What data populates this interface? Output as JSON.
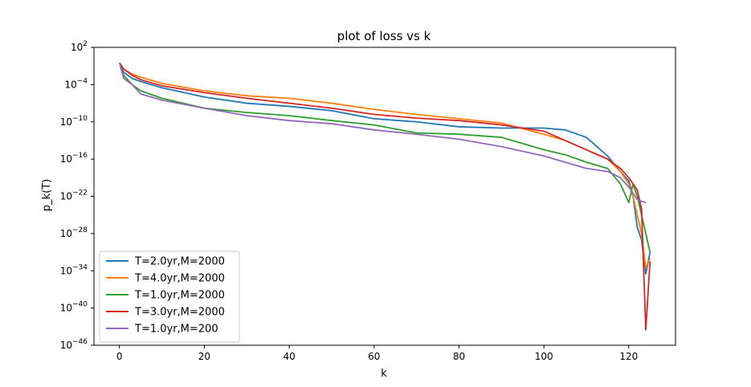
{
  "chart_data": {
    "type": "line",
    "title": "plot of loss vs k",
    "xlabel": "k",
    "ylabel": "p_k(T)",
    "xlim": [
      -6,
      131
    ],
    "ylim_exp": [
      -46,
      2
    ],
    "yscale": "log",
    "x_ticks": [
      0,
      20,
      40,
      60,
      80,
      100,
      120
    ],
    "y_tick_exps": [
      2,
      -4,
      -10,
      -16,
      -22,
      -28,
      -34,
      -40,
      -46
    ],
    "y_tick_labels": [
      "10^2",
      "10^-4",
      "10^-10",
      "10^-16",
      "10^-22",
      "10^-28",
      "10^-34",
      "10^-40",
      "10^-46"
    ],
    "legend_position": "lower-left",
    "series": [
      {
        "name": "T=2.0yr,M=2000",
        "color": "#1f77b4",
        "x": [
          0,
          1,
          3,
          5,
          10,
          20,
          30,
          40,
          50,
          60,
          70,
          80,
          90,
          100,
          105,
          110,
          115,
          118,
          120,
          121,
          122,
          123,
          124,
          125
        ],
        "log10_y": [
          -0.5,
          -2,
          -3,
          -3.5,
          -4.5,
          -6,
          -7,
          -7.5,
          -8.2,
          -9.5,
          -10,
          -10.8,
          -11,
          -11,
          -11.3,
          -12.5,
          -15.5,
          -18,
          -19.5,
          -22,
          -27,
          -29,
          -34.5,
          -31
        ]
      },
      {
        "name": "T=4.0yr,M=2000",
        "color": "#ff7f0e",
        "x": [
          0,
          1,
          3,
          5,
          10,
          20,
          30,
          40,
          50,
          60,
          70,
          80,
          90,
          100,
          105,
          110,
          115,
          118,
          120,
          121,
          122,
          123,
          124,
          125
        ],
        "log10_y": [
          -0.5,
          -1.5,
          -2.3,
          -2.8,
          -3.8,
          -5,
          -5.8,
          -6.2,
          -7,
          -8,
          -8.8,
          -9.5,
          -10.2,
          -12,
          -13,
          -14.5,
          -16,
          -18,
          -20,
          -22,
          -25,
          -28,
          -33.5,
          -32
        ]
      },
      {
        "name": "T=1.0yr,M=2000",
        "color": "#2ca02c",
        "x": [
          0,
          1,
          3,
          5,
          10,
          20,
          30,
          40,
          50,
          60,
          70,
          80,
          90,
          100,
          105,
          110,
          115,
          118,
          120,
          121,
          122,
          123,
          124,
          125
        ],
        "log10_y": [
          -0.5,
          -2.5,
          -4,
          -5,
          -6.2,
          -7.8,
          -8.5,
          -9,
          -9.8,
          -10.5,
          -11.8,
          -12,
          -12.5,
          -14.5,
          -15.3,
          -16.5,
          -17.5,
          -20,
          -23,
          -20,
          -22,
          -25,
          -28,
          -31
        ]
      },
      {
        "name": "T=3.0yr,M=2000",
        "color": "#d62728",
        "x": [
          0,
          1,
          3,
          5,
          10,
          20,
          30,
          40,
          50,
          60,
          70,
          80,
          90,
          100,
          105,
          110,
          115,
          118,
          120,
          121,
          122,
          123,
          124,
          125
        ],
        "log10_y": [
          -0.5,
          -1.5,
          -2.5,
          -3.2,
          -4.2,
          -5.3,
          -6.2,
          -7,
          -7.8,
          -8.8,
          -9.4,
          -9.8,
          -10.5,
          -11.5,
          -13,
          -14.5,
          -16,
          -17.5,
          -19,
          -20,
          -21,
          -24,
          -43.5,
          -32.5
        ]
      },
      {
        "name": "T=1.0yr,M=200",
        "color": "#9467bd",
        "x": [
          0,
          1,
          3,
          5,
          10,
          20,
          30,
          40,
          50,
          60,
          70,
          80,
          90,
          100,
          105,
          110,
          115,
          118,
          120,
          121,
          122,
          123,
          124
        ],
        "log10_y": [
          -0.5,
          -3,
          -4,
          -5.5,
          -6.5,
          -7.8,
          -9,
          -9.8,
          -10.3,
          -11.3,
          -12,
          -12.8,
          -14,
          -15.5,
          -16.5,
          -17.5,
          -18,
          -19,
          -20.5,
          -21.5,
          -22.5,
          -22.8,
          -23
        ]
      }
    ]
  }
}
